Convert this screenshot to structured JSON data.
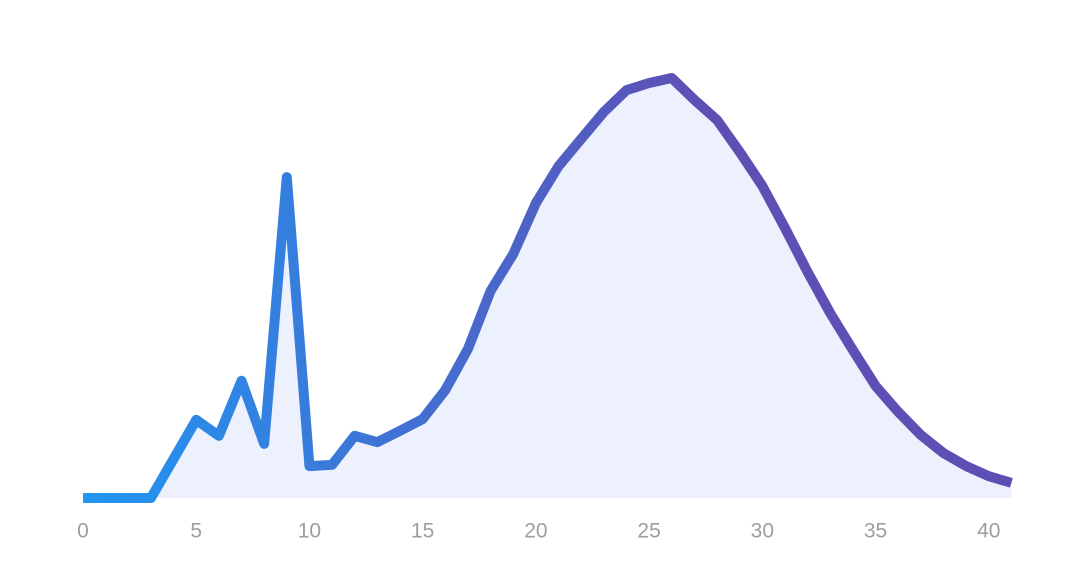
{
  "chart_data": {
    "type": "line",
    "x": [
      0,
      1,
      2,
      3,
      4,
      5,
      6,
      7,
      8,
      9,
      10,
      11,
      12,
      13,
      14,
      15,
      16,
      17,
      18,
      19,
      20,
      21,
      22,
      23,
      24,
      25,
      26,
      27,
      28,
      29,
      30,
      31,
      32,
      33,
      34,
      35,
      36,
      37,
      38,
      39,
      40,
      41
    ],
    "values": [
      0,
      0,
      0,
      0,
      9.3,
      18.6,
      14.8,
      27.9,
      12.9,
      76.4,
      7.6,
      7.9,
      14.8,
      13.3,
      16.0,
      18.8,
      25.7,
      35.5,
      49.3,
      58.1,
      70.2,
      79.0,
      85.5,
      91.9,
      97.1,
      98.8,
      100,
      94.8,
      90,
      82.4,
      74.3,
      64.3,
      53.8,
      44,
      35.2,
      26.7,
      20.5,
      15,
      10.7,
      7.6,
      5.2,
      3.6
    ],
    "colors": [
      "#2196f3",
      "#5e4fb5"
    ],
    "area_color": "#edf1fd",
    "xlim": [
      0,
      41.6
    ],
    "xticks": [
      0,
      5,
      10,
      15,
      20,
      25,
      30,
      35,
      40
    ],
    "ylim": [
      0,
      100
    ]
  }
}
